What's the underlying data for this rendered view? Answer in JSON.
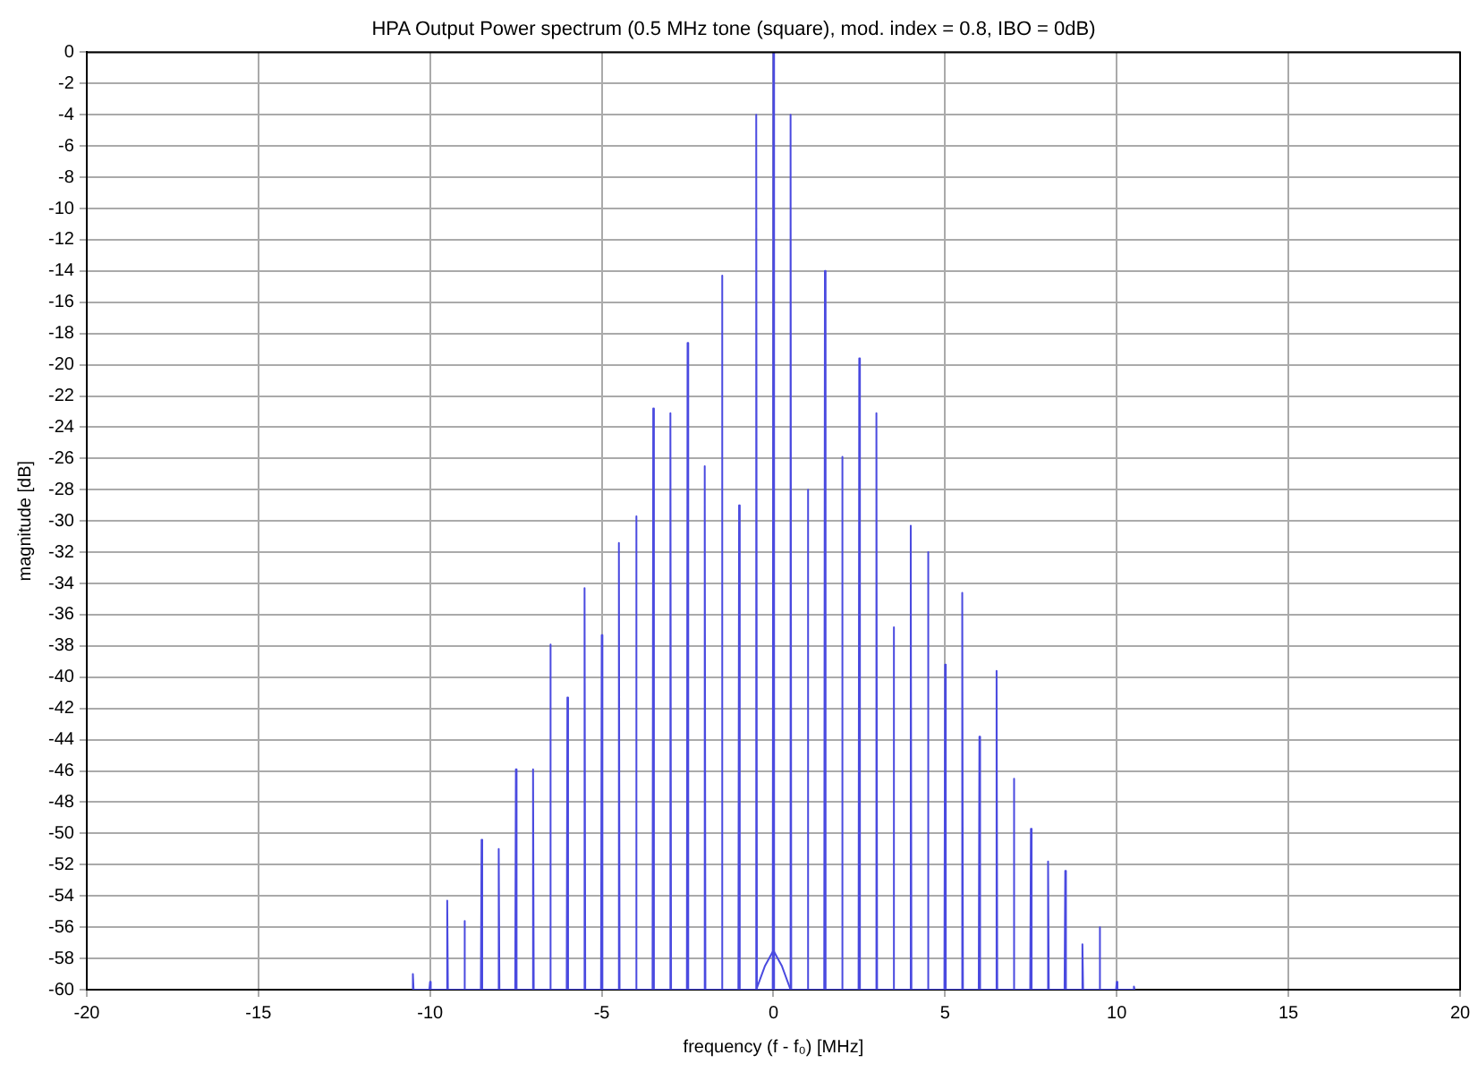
{
  "chart_data": {
    "type": "line",
    "title": "HPA Output Power spectrum (0.5 MHz tone (square), mod. index = 0.8, IBO = 0dB)",
    "xlabel": "frequency (f - f₀) [MHz]",
    "ylabel": "magnitude [dB]",
    "series": [
      {
        "color": "#4a4ae0",
        "x": [
          -10.52,
          -10.5,
          -10.48,
          -10.02,
          -10,
          -9.98,
          -9.52,
          -9.5,
          -9.48,
          -9.02,
          -9,
          -8.98,
          -8.52,
          -8.5,
          -8.48,
          -8.02,
          -8,
          -7.98,
          -7.52,
          -7.5,
          -7.48,
          -7.02,
          -7,
          -6.98,
          -6.52,
          -6.5,
          -6.48,
          -6.02,
          -6,
          -5.98,
          -5.52,
          -5.5,
          -5.48,
          -5.02,
          -5,
          -4.98,
          -4.52,
          -4.5,
          -4.48,
          -4.02,
          -4,
          -3.98,
          -3.52,
          -3.5,
          -3.48,
          -3.02,
          -3,
          -2.98,
          -2.52,
          -2.5,
          -2.48,
          -2.02,
          -2,
          -1.98,
          -1.52,
          -1.5,
          -1.48,
          -1.02,
          -1,
          -0.98,
          -0.52,
          -0.5,
          -0.48,
          -0.02,
          0,
          0.02,
          0.48,
          0.5,
          0.52,
          0.98,
          1,
          1.02,
          1.48,
          1.5,
          1.52,
          1.98,
          2,
          2.02,
          2.48,
          2.5,
          2.52,
          2.98,
          3,
          3.02,
          3.48,
          3.5,
          3.52,
          3.98,
          4,
          4.02,
          4.48,
          4.5,
          4.52,
          4.98,
          5,
          5.02,
          5.48,
          5.5,
          5.52,
          5.98,
          6,
          6.02,
          6.48,
          6.5,
          6.52,
          6.98,
          7,
          7.02,
          7.48,
          7.5,
          7.52,
          7.98,
          8,
          8.02,
          8.48,
          8.5,
          8.52,
          8.98,
          9,
          9.02,
          9.48,
          9.5,
          9.52,
          9.98,
          10,
          10.02,
          10.48,
          10.5,
          10.52
        ],
        "values": [
          -60,
          -59,
          -60,
          -60,
          -59.5,
          -60,
          -60,
          -54.3,
          -60,
          -60,
          -55.6,
          -60,
          -60,
          -50.4,
          -60,
          -60,
          -51,
          -60,
          -60,
          -45.9,
          -60,
          -60,
          -45.9,
          -60,
          -60,
          -37.9,
          -60,
          -60,
          -41.3,
          -60,
          -60,
          -34.3,
          -60,
          -60,
          -37.3,
          -60,
          -60,
          -31.4,
          -60,
          -60,
          -29.7,
          -60,
          -60,
          -22.8,
          -60,
          -60,
          -23.1,
          -60,
          -60,
          -18.6,
          -60,
          -60,
          -26.5,
          -60,
          -60,
          -14.3,
          -60,
          -60,
          -29,
          -60,
          -60,
          -4,
          -60,
          -60,
          0,
          -60,
          -60,
          -4,
          -60,
          -60,
          -28,
          -60,
          -60,
          -14,
          -60,
          -60,
          -25.9,
          -60,
          -60,
          -19.6,
          -60,
          -60,
          -23.1,
          -60,
          -60,
          -36.8,
          -60,
          -60,
          -30.3,
          -60,
          -60,
          -32,
          -60,
          -60,
          -39.2,
          -60,
          -60,
          -34.6,
          -60,
          -60,
          -43.8,
          -60,
          -60,
          -39.6,
          -60,
          -60,
          -46.5,
          -60,
          -60,
          -49.7,
          -60,
          -60,
          -51.8,
          -60,
          -60,
          -52.4,
          -60,
          -60,
          -57.1,
          -60,
          -60,
          -56,
          -60,
          -60,
          -59.5,
          -60,
          -60,
          -59.8,
          -60
        ]
      },
      {
        "color": "#4a4ae0",
        "x": [
          -0.5,
          -0.25,
          0,
          0.25,
          0.5
        ],
        "values": [
          -60,
          -58.5,
          -57.5,
          -58.5,
          -60
        ]
      }
    ],
    "xlim": [
      -20,
      20
    ],
    "xticks": [
      -20,
      -15,
      -10,
      -5,
      0,
      5,
      10,
      15,
      20
    ],
    "ylim": [
      -60,
      0
    ],
    "yticks": [
      -60,
      -58,
      -56,
      -54,
      -52,
      -50,
      -48,
      -46,
      -44,
      -42,
      -40,
      -38,
      -36,
      -34,
      -32,
      -30,
      -28,
      -26,
      -24,
      -22,
      -20,
      -18,
      -16,
      -14,
      -12,
      -10,
      -8,
      -6,
      -4,
      -2,
      0
    ],
    "grid": true,
    "legend": false
  }
}
